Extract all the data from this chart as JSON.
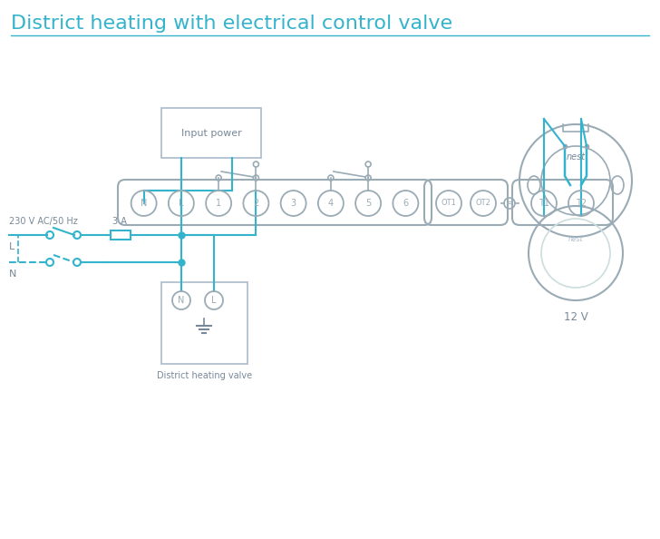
{
  "title": "District heating with electrical control valve",
  "title_color": "#34b4cc",
  "title_fontsize": 16,
  "bg_color": "#ffffff",
  "wire_color": "#34b4cc",
  "terminal_color": "#9aabb5",
  "box_edge_color": "#aabbcc",
  "text_color": "#778899",
  "label_12v": "12 V",
  "label_input_power": "Input power",
  "label_district_heating": "District heating valve",
  "label_L": "L",
  "label_N": "N",
  "label_230v": "230 V AC/50 Hz",
  "label_3A": "3 A",
  "figsize": [
    7.28,
    5.94
  ],
  "dpi": 100
}
